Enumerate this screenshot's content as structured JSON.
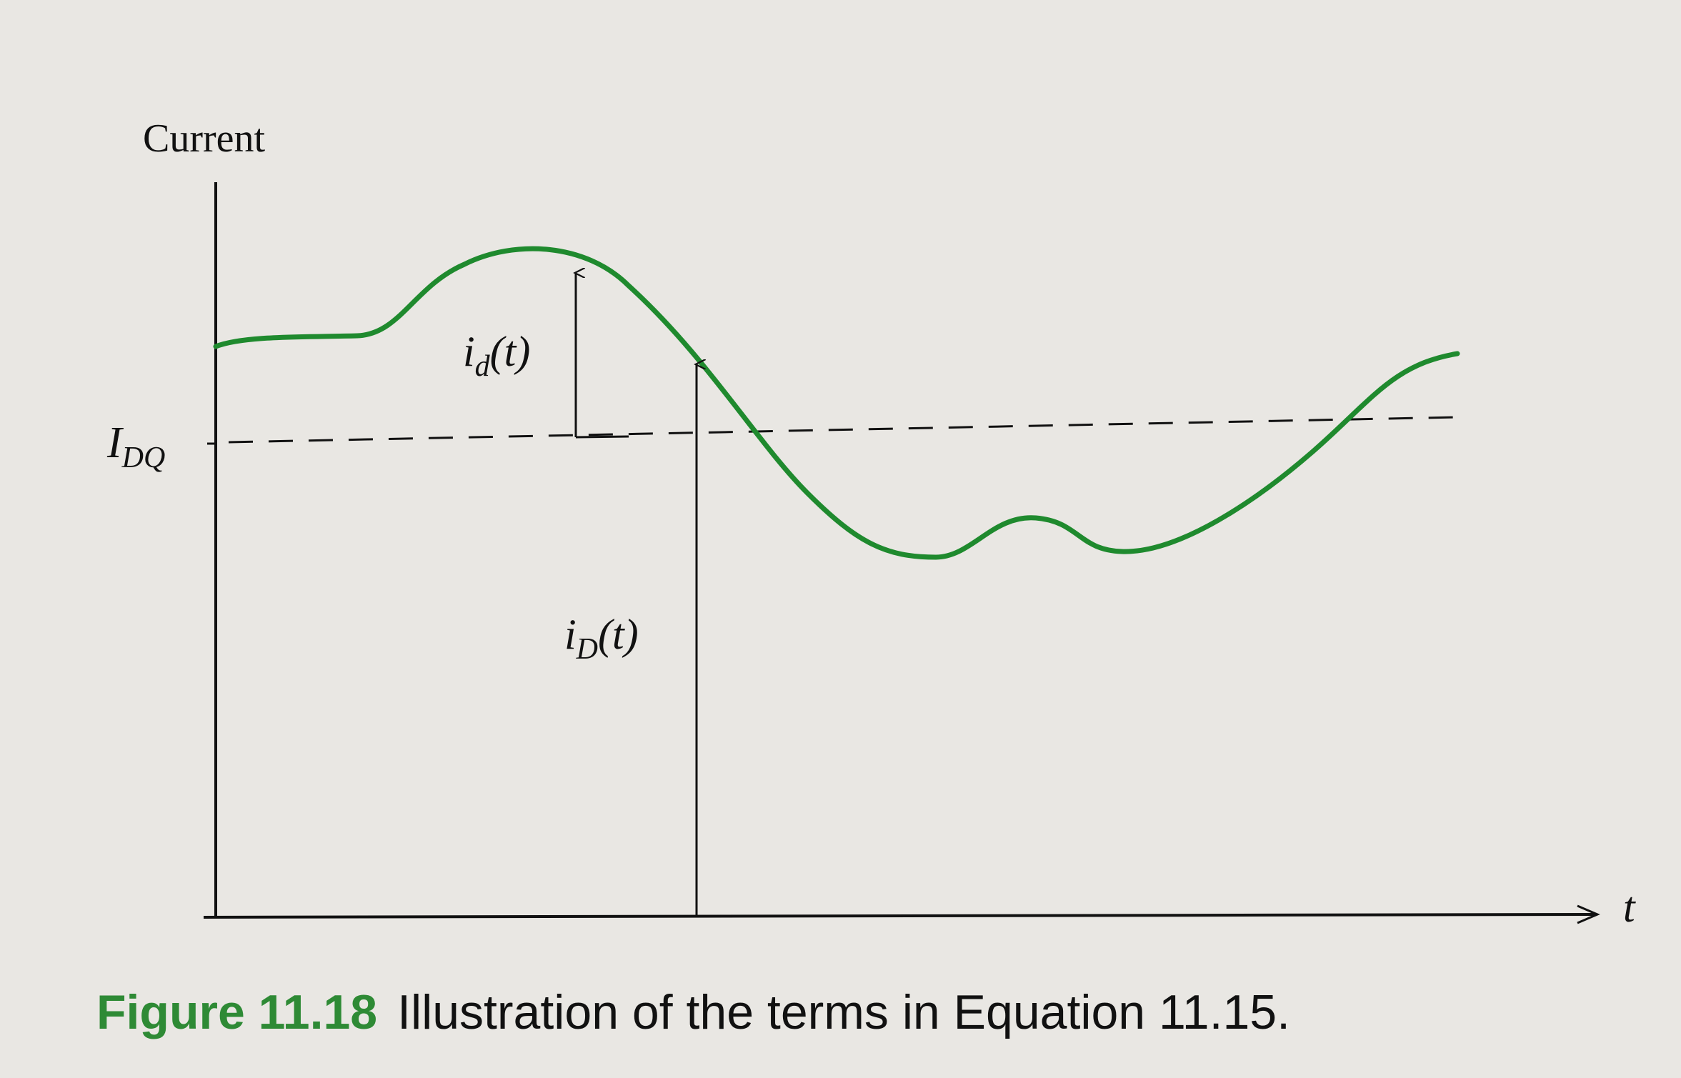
{
  "diagram": {
    "y_axis_label": "Current",
    "x_axis_label": "t",
    "quiescent_label": {
      "main": "I",
      "sub": "DQ"
    },
    "ac_label": {
      "main": "i",
      "sub": "d",
      "arg": "(t)"
    },
    "total_label": {
      "main": "i",
      "sub": "D",
      "arg": "(t)"
    }
  },
  "caption": {
    "figure_number": "Figure 11.18",
    "text": "Illustration of the terms in Equation 11.15."
  },
  "colors": {
    "waveform": "#1f8a2e",
    "caption_number": "#2e8a35",
    "ink": "#111111",
    "paper": "#e9e7e3"
  }
}
